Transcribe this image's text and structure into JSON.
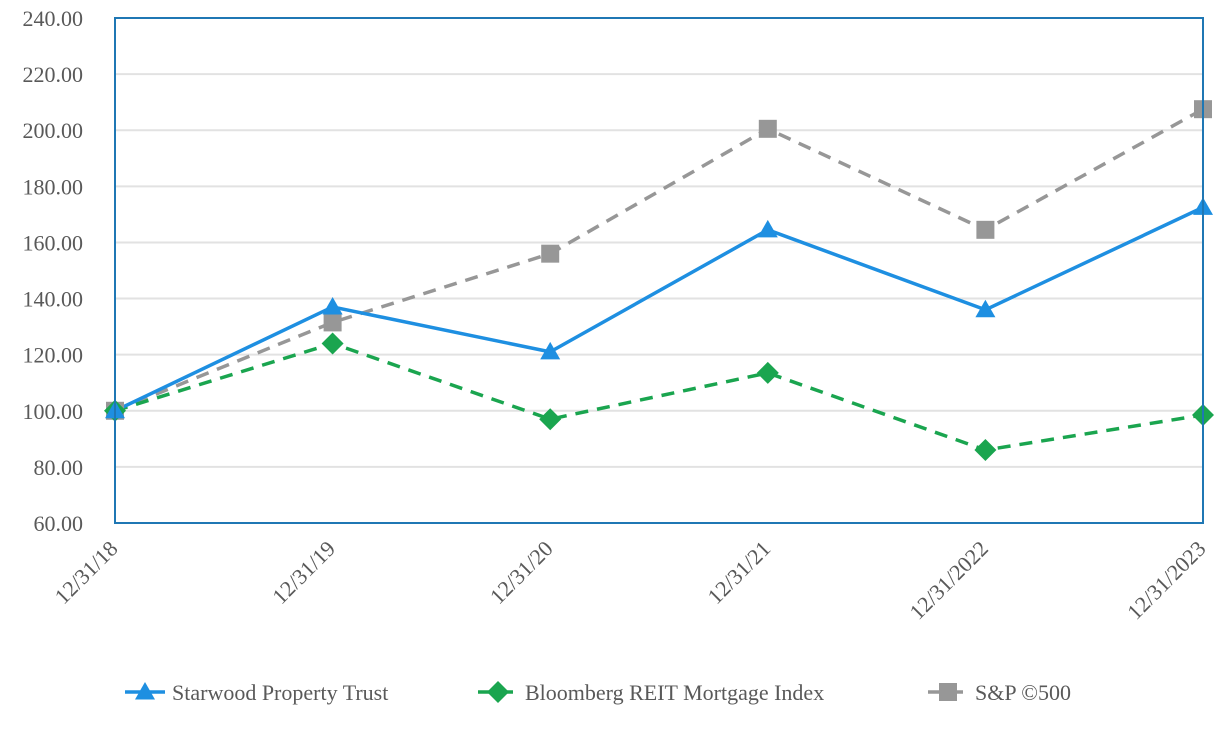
{
  "chart_data": {
    "type": "line",
    "title": "",
    "xlabel": "",
    "ylabel": "",
    "ylim": [
      60,
      240
    ],
    "ytick_step": 20,
    "ytick_labels": [
      "60.00",
      "80.00",
      "100.00",
      "120.00",
      "140.00",
      "160.00",
      "180.00",
      "200.00",
      "220.00",
      "240.00"
    ],
    "categories": [
      "12/31/18",
      "12/31/19",
      "12/31/20",
      "12/31/21",
      "12/31/2022",
      "12/31/2023"
    ],
    "grid": true,
    "legend_position": "bottom",
    "series": [
      {
        "name": "Starwood Property Trust",
        "values": [
          100.0,
          137.0,
          121.0,
          164.5,
          136.0,
          172.5
        ],
        "color": "#1E8FE1",
        "line_style": "solid",
        "marker": "triangle"
      },
      {
        "name": "Bloomberg REIT Mortgage Index",
        "values": [
          100.0,
          124.0,
          97.0,
          113.5,
          86.0,
          98.5
        ],
        "color": "#1AA54F",
        "line_style": "dashed",
        "marker": "diamond"
      },
      {
        "name": "S&P ©500",
        "values": [
          100.0,
          131.5,
          156.0,
          200.5,
          164.5,
          207.5
        ],
        "color": "#979797",
        "line_style": "dashed",
        "marker": "square"
      }
    ]
  },
  "colors": {
    "plot_border": "#1F77B4",
    "gridline": "#E2E2E2",
    "tick_text": "#595959"
  }
}
